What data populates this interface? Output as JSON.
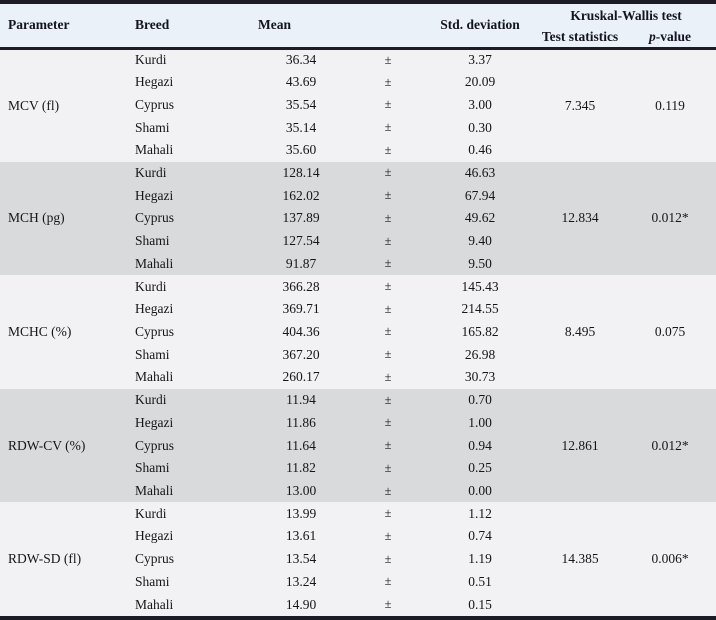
{
  "chart_data": {
    "type": "table",
    "columns": {
      "parameter": "Parameter",
      "breed": "Breed",
      "mean": "Mean",
      "pm": "±",
      "std": "Std. deviation",
      "kw_group": "Kruskal-Wallis test",
      "test_stat": "Test statistics",
      "p_value_italic": "p",
      "p_value_rest": "-value"
    },
    "groups": [
      {
        "parameter": "MCV (fl)",
        "test_statistic": "7.345",
        "p_value": "0.119",
        "shaded": false,
        "rows": [
          {
            "breed": "Kurdi",
            "mean": "36.34",
            "sd": "3.37"
          },
          {
            "breed": "Hegazi",
            "mean": "43.69",
            "sd": "20.09"
          },
          {
            "breed": "Cyprus",
            "mean": "35.54",
            "sd": "3.00"
          },
          {
            "breed": "Shami",
            "mean": "35.14",
            "sd": "0.30"
          },
          {
            "breed": "Mahali",
            "mean": "35.60",
            "sd": "0.46"
          }
        ]
      },
      {
        "parameter": "MCH (pg)",
        "test_statistic": "12.834",
        "p_value": "0.012*",
        "shaded": true,
        "rows": [
          {
            "breed": "Kurdi",
            "mean": "128.14",
            "sd": "46.63"
          },
          {
            "breed": "Hegazi",
            "mean": "162.02",
            "sd": "67.94"
          },
          {
            "breed": "Cyprus",
            "mean": "137.89",
            "sd": "49.62"
          },
          {
            "breed": "Shami",
            "mean": "127.54",
            "sd": "9.40"
          },
          {
            "breed": "Mahali",
            "mean": "91.87",
            "sd": "9.50"
          }
        ]
      },
      {
        "parameter": "MCHC (%)",
        "test_statistic": "8.495",
        "p_value": "0.075",
        "shaded": false,
        "rows": [
          {
            "breed": "Kurdi",
            "mean": "366.28",
            "sd": "145.43"
          },
          {
            "breed": "Hegazi",
            "mean": "369.71",
            "sd": "214.55"
          },
          {
            "breed": "Cyprus",
            "mean": "404.36",
            "sd": "165.82"
          },
          {
            "breed": "Shami",
            "mean": "367.20",
            "sd": "26.98"
          },
          {
            "breed": "Mahali",
            "mean": "260.17",
            "sd": "30.73"
          }
        ]
      },
      {
        "parameter": "RDW-CV (%)",
        "test_statistic": "12.861",
        "p_value": "0.012*",
        "shaded": true,
        "rows": [
          {
            "breed": "Kurdi",
            "mean": "11.94",
            "sd": "0.70"
          },
          {
            "breed": "Hegazi",
            "mean": "11.86",
            "sd": "1.00"
          },
          {
            "breed": "Cyprus",
            "mean": "11.64",
            "sd": "0.94"
          },
          {
            "breed": "Shami",
            "mean": "11.82",
            "sd": "0.25"
          },
          {
            "breed": "Mahali",
            "mean": "13.00",
            "sd": "0.00"
          }
        ]
      },
      {
        "parameter": "RDW-SD (fl)",
        "test_statistic": "14.385",
        "p_value": "0.006*",
        "shaded": false,
        "rows": [
          {
            "breed": "Kurdi",
            "mean": "13.99",
            "sd": "1.12"
          },
          {
            "breed": "Hegazi",
            "mean": "13.61",
            "sd": "0.74"
          },
          {
            "breed": "Cyprus",
            "mean": "13.54",
            "sd": "1.19"
          },
          {
            "breed": "Shami",
            "mean": "13.24",
            "sd": "0.51"
          },
          {
            "breed": "Mahali",
            "mean": "14.90",
            "sd": "0.15"
          }
        ]
      }
    ]
  },
  "colors": {
    "border": "#1c1c26",
    "header_bg": "#eaf1f8",
    "row_light": "#f2f2f4",
    "row_shaded": "#d9dadc"
  }
}
